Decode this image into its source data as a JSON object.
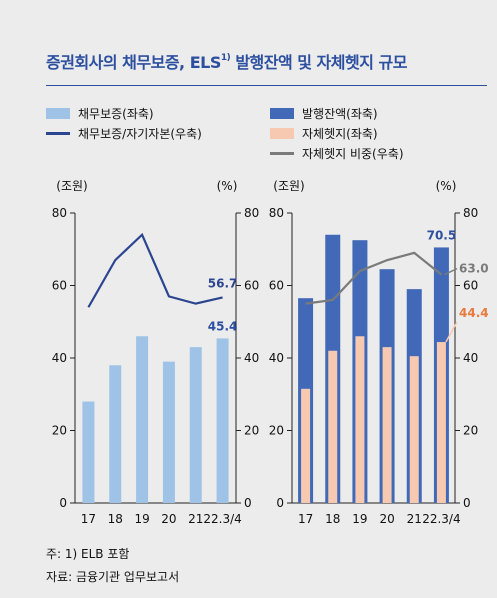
{
  "title_main": "증권회사의 채무보증, ELS",
  "title_sup": "1)",
  "title_tail": " 발행잔액 및 자체헷지 규모",
  "colors": {
    "title": "#2c4fa0",
    "debt_bar": "#9fc3e6",
    "debt_ratio_line": "#2b4590",
    "els_bar": "#4169b8",
    "hedge_bar": "#f6c9b0",
    "hedge_ratio_line": "#7a7a7a",
    "hedge_ratio_label": "#e87a3c",
    "ratio_label_left": "#2b4590",
    "els_label": "#2c4fa0"
  },
  "legend": [
    {
      "label": "채무보증(좌축)",
      "kind": "box",
      "color_key": "debt_bar"
    },
    {
      "label": "채무보증/자기자본(우축)",
      "kind": "line",
      "color_key": "debt_ratio_line"
    },
    {
      "label": "발행잔액(좌축)",
      "kind": "box",
      "color_key": "els_bar"
    },
    {
      "label": "자체헷지(좌축)",
      "kind": "box",
      "color_key": "hedge_bar"
    },
    {
      "label": "자체헷지 비중(우축)",
      "kind": "line",
      "color_key": "hedge_ratio_line"
    }
  ],
  "notes": [
    "주: 1) ELB 포함",
    "자료: 금융기관 업무보고서"
  ],
  "chart_data": [
    {
      "type": "bar",
      "categories": [
        "17",
        "18",
        "19",
        "20",
        "21",
        "22.3/4"
      ],
      "left_axis_unit": "(조원)",
      "right_axis_unit": "(%)",
      "left_ylim": [
        0,
        80
      ],
      "right_ylim": [
        0,
        80
      ],
      "left_ticks": [
        0,
        20,
        40,
        60,
        80
      ],
      "right_ticks": [
        0,
        20,
        40,
        60,
        80
      ],
      "series": [
        {
          "name": "채무보증(좌축)",
          "type": "bar",
          "axis": "left",
          "values": [
            28,
            38,
            46,
            39,
            43,
            45.4
          ]
        },
        {
          "name": "채무보증/자기자본(우축)",
          "type": "line",
          "axis": "right",
          "values": [
            54,
            67,
            74,
            57,
            55,
            56.7
          ]
        }
      ],
      "data_labels": [
        {
          "text": "56.7",
          "series": 1,
          "index": 5
        },
        {
          "text": "45.4",
          "series": 0,
          "index": 5
        }
      ]
    },
    {
      "type": "bar",
      "categories": [
        "17",
        "18",
        "19",
        "20",
        "21",
        "22.3/4"
      ],
      "left_axis_unit": "(조원)",
      "right_axis_unit": "(%)",
      "left_ylim": [
        0,
        80
      ],
      "right_ylim": [
        0,
        80
      ],
      "left_ticks": [
        0,
        20,
        40,
        60,
        80
      ],
      "right_ticks": [
        0,
        20,
        40,
        60,
        80
      ],
      "series": [
        {
          "name": "발행잔액(좌축)",
          "type": "bar",
          "axis": "left",
          "values": [
            56.5,
            74,
            72.5,
            64.5,
            59,
            70.5
          ]
        },
        {
          "name": "자체헷지(좌축)",
          "type": "bar",
          "axis": "left",
          "values": [
            31.5,
            42,
            46,
            43,
            40.5,
            44.4
          ]
        },
        {
          "name": "자체헷지 비중(우축)",
          "type": "line",
          "axis": "right",
          "values": [
            55,
            56,
            64,
            67,
            69,
            63.0
          ]
        }
      ],
      "data_labels": [
        {
          "text": "70.5",
          "series": 0,
          "index": 5
        },
        {
          "text": "63.0",
          "series": 2,
          "index": 5
        },
        {
          "text": "44.4",
          "series": 1,
          "index": 5
        }
      ]
    }
  ]
}
